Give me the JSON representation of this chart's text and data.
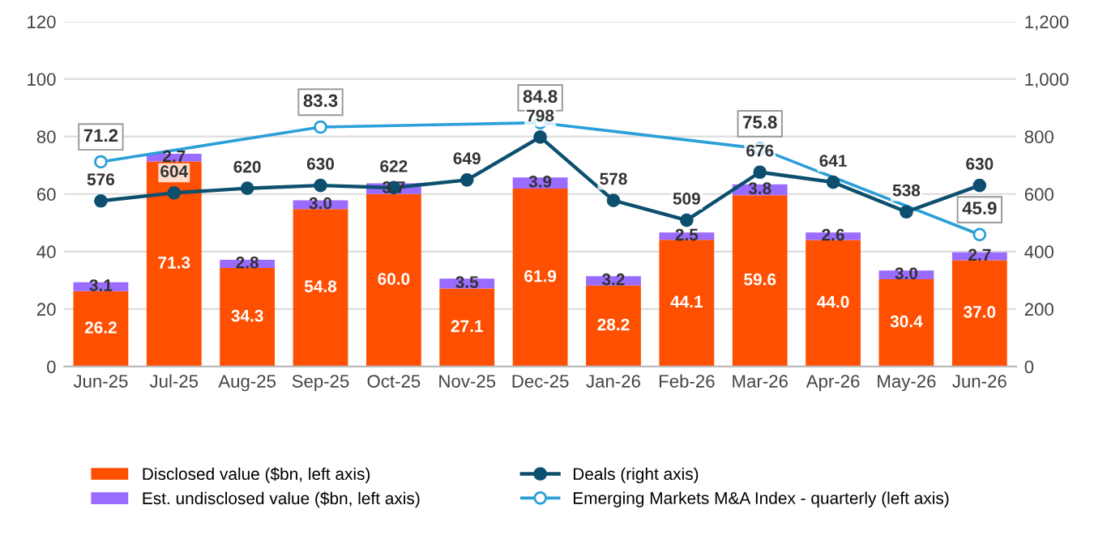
{
  "chart_data": {
    "type": "bar",
    "stacked": true,
    "categories": [
      "Jun-25",
      "Jul-25",
      "Aug-25",
      "Sep-25",
      "Oct-25",
      "Nov-25",
      "Dec-25",
      "Jan-26",
      "Feb-26",
      "Mar-26",
      "Apr-26",
      "May-26",
      "Jun-26"
    ],
    "series": [
      {
        "name": "Disclosed value ($bn, left axis)",
        "color": "#ff4f00",
        "values": [
          26.2,
          71.3,
          34.3,
          54.8,
          60.0,
          27.1,
          61.9,
          28.2,
          44.1,
          59.6,
          44.0,
          30.4,
          37.0
        ],
        "value_labels": [
          "26.2",
          "71.3",
          "34.3",
          "54.8",
          "60.0",
          "27.1",
          "61.9",
          "28.2",
          "44.1",
          "59.6",
          "44.0",
          "30.4",
          "37.0"
        ]
      },
      {
        "name": "Est. undisclosed value ($bn, left axis)",
        "color": "#9a6bff",
        "values": [
          3.1,
          2.7,
          2.8,
          3.0,
          3.7,
          3.5,
          3.9,
          3.2,
          2.5,
          3.8,
          2.6,
          3.0,
          2.7
        ],
        "value_labels": [
          "3.1",
          "2.7",
          "2.8",
          "3.0",
          "3.7",
          "3.5",
          "3.9",
          "3.2",
          "2.5",
          "3.8",
          "2.6",
          "3.0",
          "2.7"
        ]
      },
      {
        "name": "Deals (right axis)",
        "type": "line",
        "axis": "y2",
        "color": "#0d4f6e",
        "marker": "circle",
        "values": [
          576,
          604,
          620,
          630,
          622,
          649,
          798,
          578,
          509,
          676,
          641,
          538,
          630
        ]
      },
      {
        "name": "Emerging Markets M&A Index - quarterly (left axis)",
        "type": "line",
        "color": "#2a9fd8",
        "marker": "circle",
        "values": [
          71.2,
          null,
          null,
          83.3,
          null,
          null,
          84.8,
          null,
          null,
          75.8,
          null,
          null,
          45.9
        ]
      }
    ],
    "ylim": [
      0,
      120
    ],
    "yticks": [
      0,
      20,
      40,
      60,
      80,
      100,
      120
    ],
    "y2lim": [
      0,
      1200
    ],
    "y2ticks": [
      {
        "value": 0,
        "label": "0"
      },
      {
        "value": 200,
        "label": "200"
      },
      {
        "value": 400,
        "label": "400"
      },
      {
        "value": 600,
        "label": "600"
      },
      {
        "value": 800,
        "label": "800"
      },
      {
        "value": 1000,
        "label": "1,000"
      },
      {
        "value": 1200,
        "label": "1,200"
      }
    ],
    "grid": "y",
    "legend": "bottom",
    "data_labels": true
  }
}
